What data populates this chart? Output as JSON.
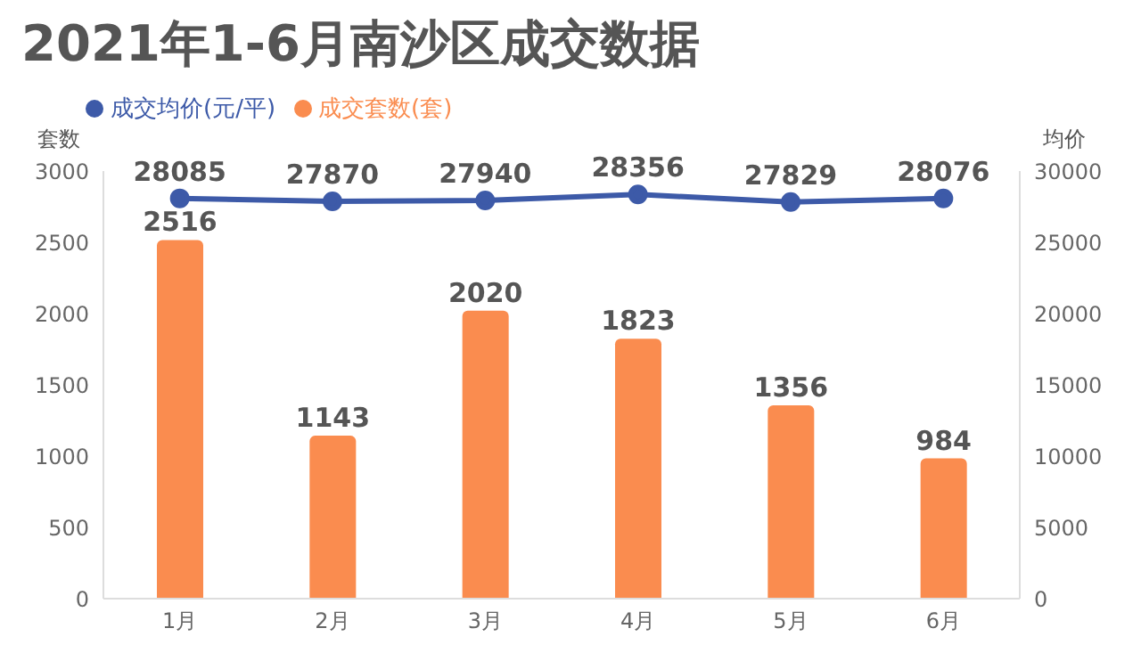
{
  "chart_data": {
    "type": "bar",
    "title": "2021年1-6月南沙区成交数据",
    "ylabel": "套数",
    "y2label": "均价",
    "categories": [
      "1月",
      "2月",
      "3月",
      "4月",
      "5月",
      "6月"
    ],
    "series": [
      {
        "name": "成交套数(套)",
        "color": "#fa8c4f",
        "values": [
          2516,
          1143,
          2020,
          1823,
          1356,
          984
        ]
      },
      {
        "name": "成交均价(元/平)",
        "type": "line",
        "axis": "y2",
        "color": "#3d5aa8",
        "values": [
          28085,
          27870,
          27940,
          28356,
          27829,
          28076
        ]
      }
    ],
    "ylim": [
      0,
      3000
    ],
    "yticks": [
      0,
      500,
      1000,
      1500,
      2000,
      2500,
      3000
    ],
    "y2lim": [
      0,
      30000
    ],
    "y2ticks": [
      0,
      5000,
      10000,
      15000,
      20000,
      25000,
      30000
    ],
    "data_labels": true,
    "legend": "top left",
    "marker": "circle",
    "grid": false
  }
}
